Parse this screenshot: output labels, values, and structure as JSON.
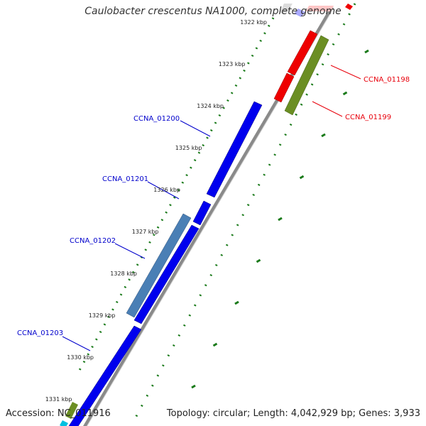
{
  "title": "Caulobacter crescentus NA1000, complete genome",
  "footer": {
    "accession": "Accession: NC_011916",
    "info": "Topology: circular; Length: 4,042,929 bp; Genes: 3,933"
  },
  "scale_labels": [
    "1322 kbp",
    "1323 kbp",
    "1324 kbp",
    "1325 kbp",
    "1326 kbp",
    "1327 kbp",
    "1328 kbp",
    "1329 kbp",
    "1330 kbp",
    "1331 kbp"
  ],
  "genes": [
    {
      "label": "CCNA_01198",
      "color": "#e8000b"
    },
    {
      "label": "CCNA_01199",
      "color": "#e8000b"
    },
    {
      "label": "CCNA_01200",
      "color": "#0000cc"
    },
    {
      "label": "CCNA_01201",
      "color": "#0000cc"
    },
    {
      "label": "CCNA_01202",
      "color": "#0000cc"
    },
    {
      "label": "CCNA_01203",
      "color": "#0000cc"
    }
  ],
  "colors": {
    "blue_gene": "#0000ee",
    "steel_gene": "#4a7fb5",
    "red_gene": "#ee0000",
    "olive_gene": "#6b8e23",
    "backbone": "#888888",
    "tick": "#1a7a1a"
  }
}
